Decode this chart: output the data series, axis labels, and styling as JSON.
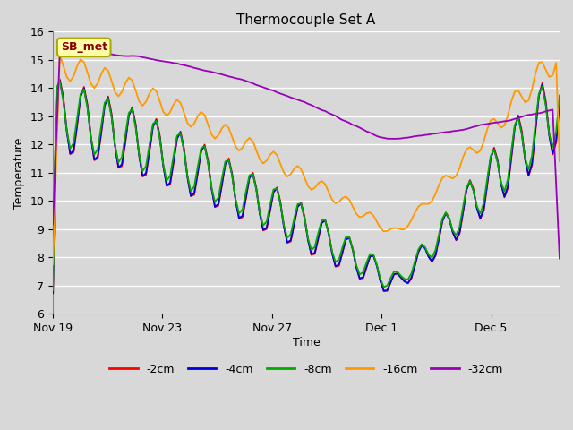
{
  "title": "Thermocouple Set A",
  "xlabel": "Time",
  "ylabel": "Temperature",
  "ylim": [
    6.0,
    16.0
  ],
  "yticks": [
    6.0,
    7.0,
    8.0,
    9.0,
    10.0,
    11.0,
    12.0,
    13.0,
    14.0,
    15.0,
    16.0
  ],
  "bg_color": "#d8d8d8",
  "plot_bg_color": "#d8d8d8",
  "grid_color": "#ffffff",
  "line_colors": {
    "-2cm": "#ff0000",
    "-4cm": "#0000dd",
    "-8cm": "#00aa00",
    "-16cm": "#ff9900",
    "-32cm": "#9900bb"
  },
  "legend_labels": [
    "-2cm",
    "-4cm",
    "-8cm",
    "-16cm",
    "-32cm"
  ],
  "annotation_text": "SB_met",
  "annotation_box_color": "#ffffaa",
  "annotation_box_edge": "#aaaa00",
  "annotation_text_color": "#880000",
  "tick_labels": [
    "Nov 19",
    "Nov 23",
    "Nov 27",
    "Dec 1",
    "Dec 5"
  ],
  "tick_days": [
    0,
    4,
    8,
    12,
    16
  ]
}
